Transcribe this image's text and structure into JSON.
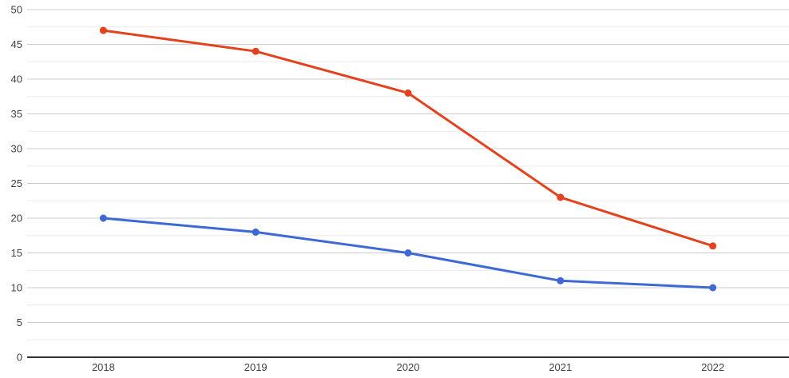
{
  "chart_data": {
    "type": "line",
    "title": "",
    "xlabel": "",
    "ylabel": "",
    "categories": [
      "2018",
      "2019",
      "2020",
      "2021",
      "2022"
    ],
    "series": [
      {
        "name": "red-series",
        "color": "#e2431e",
        "values": [
          47,
          44,
          38,
          23,
          16
        ]
      },
      {
        "name": "blue-series",
        "color": "#3e69d5",
        "values": [
          20,
          18,
          15,
          11,
          10
        ]
      }
    ],
    "ylim": [
      0,
      50
    ],
    "ytick_step": 5,
    "yminor_step": 2.5,
    "y_tick_labels": [
      "0",
      "5",
      "10",
      "15",
      "20",
      "25",
      "30",
      "35",
      "40",
      "45",
      "50"
    ],
    "grid": true,
    "legend": "none",
    "colors": {
      "major_gridline": "#cccccc",
      "minor_gridline": "#ebebeb",
      "baseline": "#333333",
      "tick_label": "#404040",
      "background": "#ffffff"
    }
  }
}
